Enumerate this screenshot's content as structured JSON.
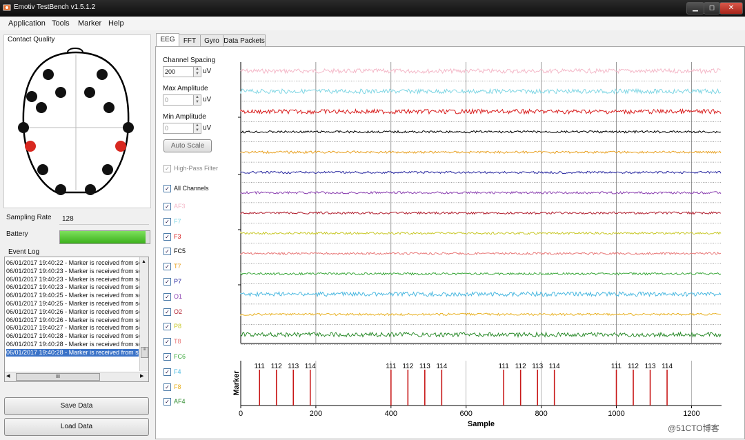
{
  "window": {
    "title": "Emotiv TestBench v1.5.1.2",
    "min": "▁",
    "max": "◻",
    "close": "✕"
  },
  "menu": [
    "Application",
    "Tools",
    "Marker",
    "Help"
  ],
  "left": {
    "contact_quality": "Contact Quality",
    "sampling_rate_label": "Sampling Rate",
    "sampling_rate_value": "128",
    "battery_label": "Battery",
    "battery_level": 0.95,
    "event_log_label": "Event Log",
    "event_log": [
      "06/01/2017 19:40:22 - Marker is received from ser",
      "06/01/2017 19:40:23 - Marker is received from ser",
      "06/01/2017 19:40:23 - Marker is received from ser",
      "06/01/2017 19:40:23 - Marker is received from ser",
      "06/01/2017 19:40:25 - Marker is received from ser",
      "06/01/2017 19:40:25 - Marker is received from ser",
      "06/01/2017 19:40:26 - Marker is received from ser",
      "06/01/2017 19:40:26 - Marker is received from ser",
      "06/01/2017 19:40:27 - Marker is received from ser",
      "06/01/2017 19:40:28 - Marker is received from ser",
      "06/01/2017 19:40:28 - Marker is received from ser",
      "06/01/2017 19:40:28 - Marker is received from ser"
    ],
    "hscroll_thumb": "III",
    "save_data": "Save Data",
    "load_data": "Load Data"
  },
  "tabs": [
    "EEG",
    "FFT",
    "Gyro",
    "Data Packets"
  ],
  "controls": {
    "channel_spacing_label": "Channel Spacing",
    "channel_spacing_value": "200",
    "max_amplitude_label": "Max Amplitude",
    "max_amplitude_value": "0",
    "min_amplitude_label": "Min Amplitude",
    "min_amplitude_value": "0",
    "unit": "uV",
    "auto_scale": "Auto Scale",
    "high_pass": "High-Pass Filter",
    "all_channels": "All Channels"
  },
  "channels": [
    {
      "name": "AF3",
      "color": "#f4b8c8"
    },
    {
      "name": "F7",
      "color": "#7fd6e4"
    },
    {
      "name": "F3",
      "color": "#d81c1c"
    },
    {
      "name": "FC5",
      "color": "#000000"
    },
    {
      "name": "T7",
      "color": "#e8a020"
    },
    {
      "name": "P7",
      "color": "#2828a0"
    },
    {
      "name": "O1",
      "color": "#8a3fb0"
    },
    {
      "name": "O2",
      "color": "#b01c2c"
    },
    {
      "name": "P8",
      "color": "#c8c828"
    },
    {
      "name": "T8",
      "color": "#e87878"
    },
    {
      "name": "FC6",
      "color": "#3ca83c"
    },
    {
      "name": "F4",
      "color": "#4ab8e0"
    },
    {
      "name": "F8",
      "color": "#e8b020"
    },
    {
      "name": "AF4",
      "color": "#2a8a2a"
    }
  ],
  "chart_data": {
    "type": "line",
    "xlabel": "Sample",
    "ylabel": "Marker",
    "xlim": [
      0,
      1280
    ],
    "x_ticks": [
      0,
      200,
      400,
      600,
      800,
      1000,
      1200
    ],
    "markers": [
      {
        "x": 50,
        "label": "111"
      },
      {
        "x": 95,
        "label": "112"
      },
      {
        "x": 140,
        "label": "113"
      },
      {
        "x": 185,
        "label": "114"
      },
      {
        "x": 400,
        "label": "111"
      },
      {
        "x": 445,
        "label": "112"
      },
      {
        "x": 490,
        "label": "113"
      },
      {
        "x": 535,
        "label": "114"
      },
      {
        "x": 700,
        "label": "111"
      },
      {
        "x": 745,
        "label": "112"
      },
      {
        "x": 790,
        "label": "113"
      },
      {
        "x": 835,
        "label": "114"
      },
      {
        "x": 1000,
        "label": "111"
      },
      {
        "x": 1045,
        "label": "112"
      },
      {
        "x": 1090,
        "label": "113"
      },
      {
        "x": 1135,
        "label": "114"
      }
    ]
  },
  "watermark": "@51CTO博客"
}
